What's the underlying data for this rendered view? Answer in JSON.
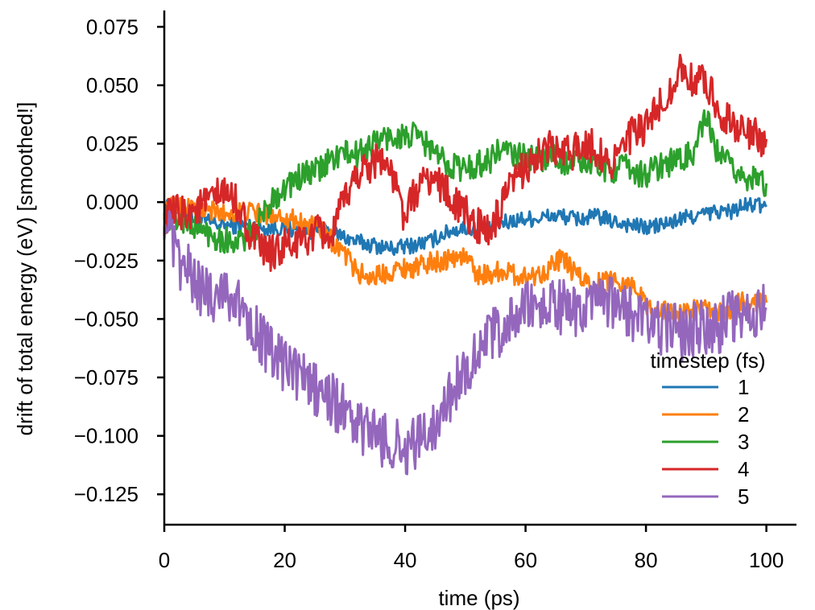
{
  "chart_data": {
    "type": "line",
    "title": "",
    "xlabel": "time (ps)",
    "ylabel": "drift of total energy (eV) [smoothed!]",
    "xlim": [
      0,
      105
    ],
    "ylim": [
      -0.138,
      0.082
    ],
    "xticks": [
      0,
      20,
      40,
      60,
      80,
      100
    ],
    "yticks": [
      0.075,
      0.05,
      0.025,
      0.0,
      -0.025,
      -0.05,
      -0.075,
      -0.1,
      -0.125
    ],
    "xtick_labels": [
      "0",
      "20",
      "40",
      "60",
      "80",
      "100"
    ],
    "ytick_labels": [
      "0.075",
      "0.050",
      "0.025",
      "0.000",
      "−0.025",
      "−0.050",
      "−0.075",
      "−0.100",
      "−0.125"
    ],
    "grid": false,
    "legend": {
      "title": "timestep (fs)",
      "placement": "bottom-right"
    },
    "x": [
      0,
      2,
      4,
      6,
      8,
      10,
      12,
      14,
      16,
      18,
      20,
      22,
      24,
      26,
      28,
      30,
      32,
      34,
      36,
      38,
      40,
      42,
      44,
      46,
      48,
      50,
      52,
      54,
      56,
      58,
      60,
      62,
      64,
      66,
      68,
      70,
      72,
      74,
      76,
      78,
      80,
      82,
      84,
      86,
      88,
      90,
      92,
      94,
      96,
      98,
      100
    ],
    "series": [
      {
        "name": "1",
        "color": "#1f77b4",
        "noise": 0.0035,
        "values": [
          -0.002,
          -0.004,
          -0.006,
          -0.008,
          -0.009,
          -0.01,
          -0.01,
          -0.01,
          -0.011,
          -0.011,
          -0.011,
          -0.012,
          -0.012,
          -0.013,
          -0.013,
          -0.015,
          -0.017,
          -0.018,
          -0.019,
          -0.02,
          -0.019,
          -0.018,
          -0.017,
          -0.014,
          -0.012,
          -0.011,
          -0.012,
          -0.012,
          -0.009,
          -0.008,
          -0.007,
          -0.007,
          -0.006,
          -0.006,
          -0.007,
          -0.007,
          -0.006,
          -0.008,
          -0.009,
          -0.01,
          -0.011,
          -0.01,
          -0.009,
          -0.007,
          -0.006,
          -0.005,
          -0.004,
          -0.004,
          -0.002,
          -0.001,
          -0.002
        ]
      },
      {
        "name": "2",
        "color": "#ff7f0e",
        "noise": 0.0045,
        "values": [
          -0.003,
          -0.002,
          -0.002,
          -0.003,
          -0.004,
          -0.005,
          -0.004,
          -0.004,
          -0.005,
          -0.005,
          -0.006,
          -0.008,
          -0.01,
          -0.012,
          -0.017,
          -0.022,
          -0.03,
          -0.032,
          -0.031,
          -0.029,
          -0.028,
          -0.028,
          -0.026,
          -0.025,
          -0.024,
          -0.023,
          -0.031,
          -0.031,
          -0.029,
          -0.031,
          -0.032,
          -0.031,
          -0.028,
          -0.024,
          -0.03,
          -0.034,
          -0.035,
          -0.033,
          -0.034,
          -0.036,
          -0.044,
          -0.046,
          -0.047,
          -0.048,
          -0.046,
          -0.046,
          -0.048,
          -0.046,
          -0.042,
          -0.043,
          -0.043
        ]
      },
      {
        "name": "3",
        "color": "#2ca02c",
        "noise": 0.006,
        "values": [
          -0.006,
          -0.007,
          -0.009,
          -0.012,
          -0.014,
          -0.016,
          -0.017,
          -0.015,
          -0.008,
          0.002,
          0.006,
          0.01,
          0.012,
          0.014,
          0.019,
          0.021,
          0.02,
          0.024,
          0.027,
          0.028,
          0.028,
          0.028,
          0.024,
          0.018,
          0.016,
          0.014,
          0.016,
          0.018,
          0.023,
          0.02,
          0.019,
          0.018,
          0.021,
          0.017,
          0.018,
          0.016,
          0.016,
          0.014,
          0.015,
          0.013,
          0.012,
          0.015,
          0.017,
          0.018,
          0.022,
          0.036,
          0.02,
          0.015,
          0.012,
          0.009,
          0.008
        ]
      },
      {
        "name": "4",
        "color": "#d62728",
        "noise": 0.008,
        "values": [
          -0.007,
          -0.005,
          -0.004,
          -0.002,
          0.001,
          0.004,
          0.0,
          -0.012,
          -0.02,
          -0.022,
          -0.019,
          -0.018,
          -0.015,
          -0.013,
          -0.015,
          0.002,
          0.012,
          0.016,
          0.02,
          0.01,
          -0.007,
          0.006,
          0.01,
          0.008,
          0.0,
          -0.005,
          -0.01,
          -0.013,
          -0.003,
          0.008,
          0.016,
          0.019,
          0.023,
          0.02,
          0.022,
          0.026,
          0.022,
          0.017,
          0.022,
          0.03,
          0.031,
          0.04,
          0.048,
          0.058,
          0.05,
          0.052,
          0.04,
          0.035,
          0.03,
          0.028,
          0.027
        ]
      },
      {
        "name": "5",
        "color": "#9467bd",
        "noise": 0.012,
        "values": [
          -0.005,
          -0.025,
          -0.03,
          -0.037,
          -0.04,
          -0.036,
          -0.044,
          -0.048,
          -0.058,
          -0.066,
          -0.07,
          -0.073,
          -0.078,
          -0.082,
          -0.085,
          -0.09,
          -0.096,
          -0.098,
          -0.101,
          -0.104,
          -0.106,
          -0.103,
          -0.097,
          -0.09,
          -0.08,
          -0.072,
          -0.063,
          -0.058,
          -0.055,
          -0.05,
          -0.046,
          -0.045,
          -0.044,
          -0.045,
          -0.047,
          -0.046,
          -0.045,
          -0.044,
          -0.046,
          -0.048,
          -0.052,
          -0.053,
          -0.054,
          -0.056,
          -0.054,
          -0.054,
          -0.053,
          -0.05,
          -0.048,
          -0.047,
          -0.046
        ]
      }
    ]
  }
}
